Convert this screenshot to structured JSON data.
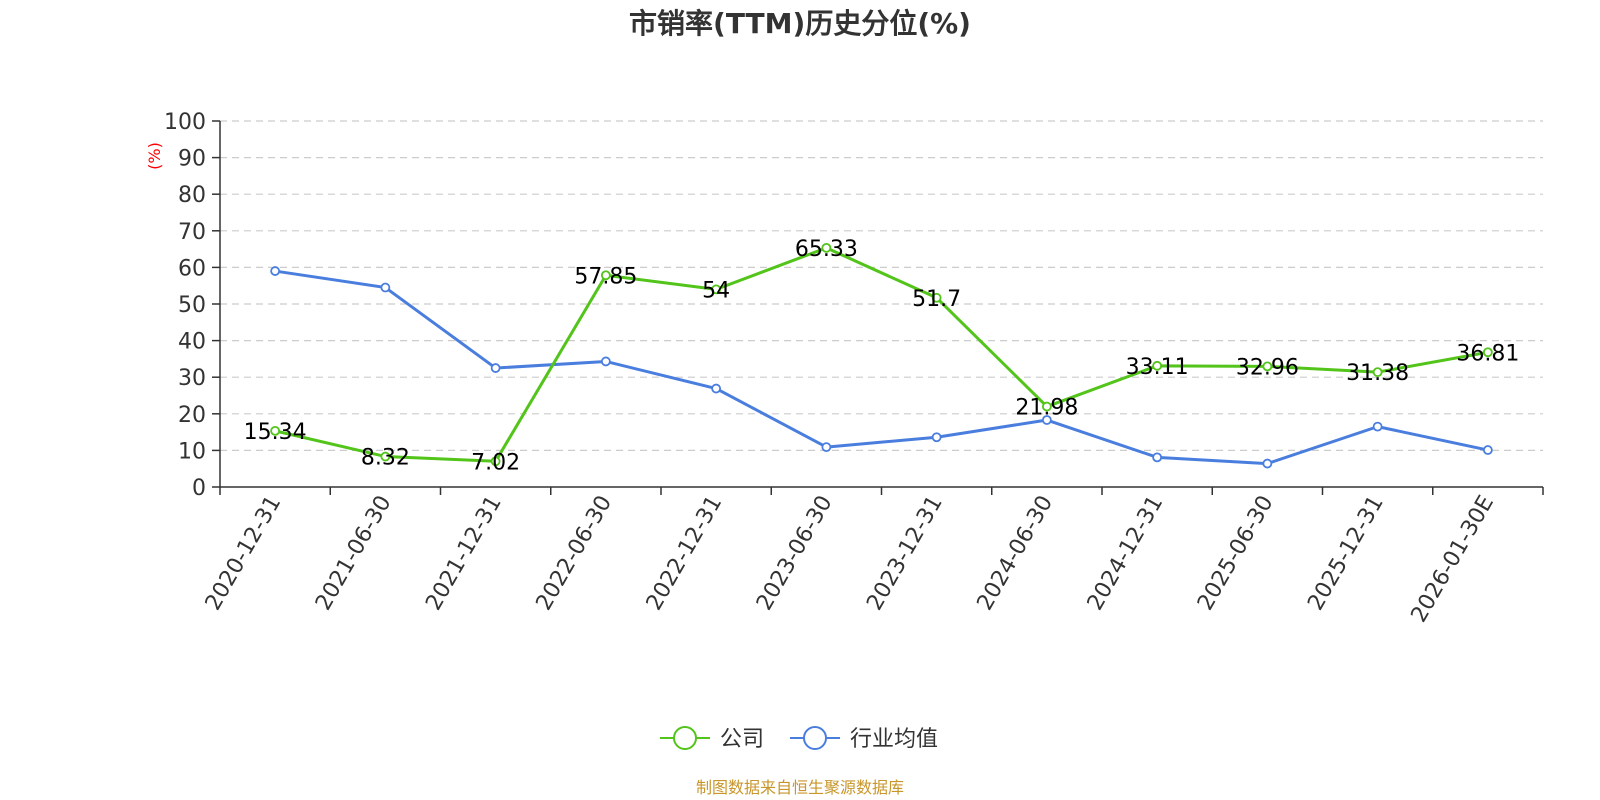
{
  "chart_data": {
    "type": "line",
    "title": "市销率(TTM)历史分位(%)",
    "ylabel": "(%)",
    "xlabel": "",
    "ylim": [
      0,
      100
    ],
    "yticks": [
      0,
      10,
      20,
      30,
      40,
      50,
      60,
      70,
      80,
      90,
      100
    ],
    "categories": [
      "2020-12-31",
      "2021-06-30",
      "2021-12-31",
      "2022-06-30",
      "2022-12-31",
      "2023-06-30",
      "2023-12-31",
      "2024-06-30",
      "2024-12-31",
      "2025-06-30",
      "2025-12-31",
      "2026-01-30E"
    ],
    "grid": true,
    "legend_position": "bottom",
    "series": [
      {
        "name": "公司",
        "color": "#52c41a",
        "values": [
          15.34,
          8.32,
          7.02,
          57.85,
          54,
          65.33,
          51.7,
          21.98,
          33.11,
          32.96,
          31.38,
          36.81
        ],
        "labels": [
          "15.34",
          "8.32",
          "7.02",
          "57.85",
          "54",
          "65.33",
          "51.7",
          "21.98",
          "33.11",
          "32.96",
          "31.38",
          "36.81"
        ]
      },
      {
        "name": "行业均值",
        "color": "#4a7ede",
        "values": [
          59,
          54.5,
          32.5,
          34.3,
          26.9,
          10.9,
          13.6,
          18.3,
          8.1,
          6.4,
          16.5,
          10.1
        ]
      }
    ]
  },
  "footer": {
    "source": "制图数据来自恒生聚源数据库"
  }
}
